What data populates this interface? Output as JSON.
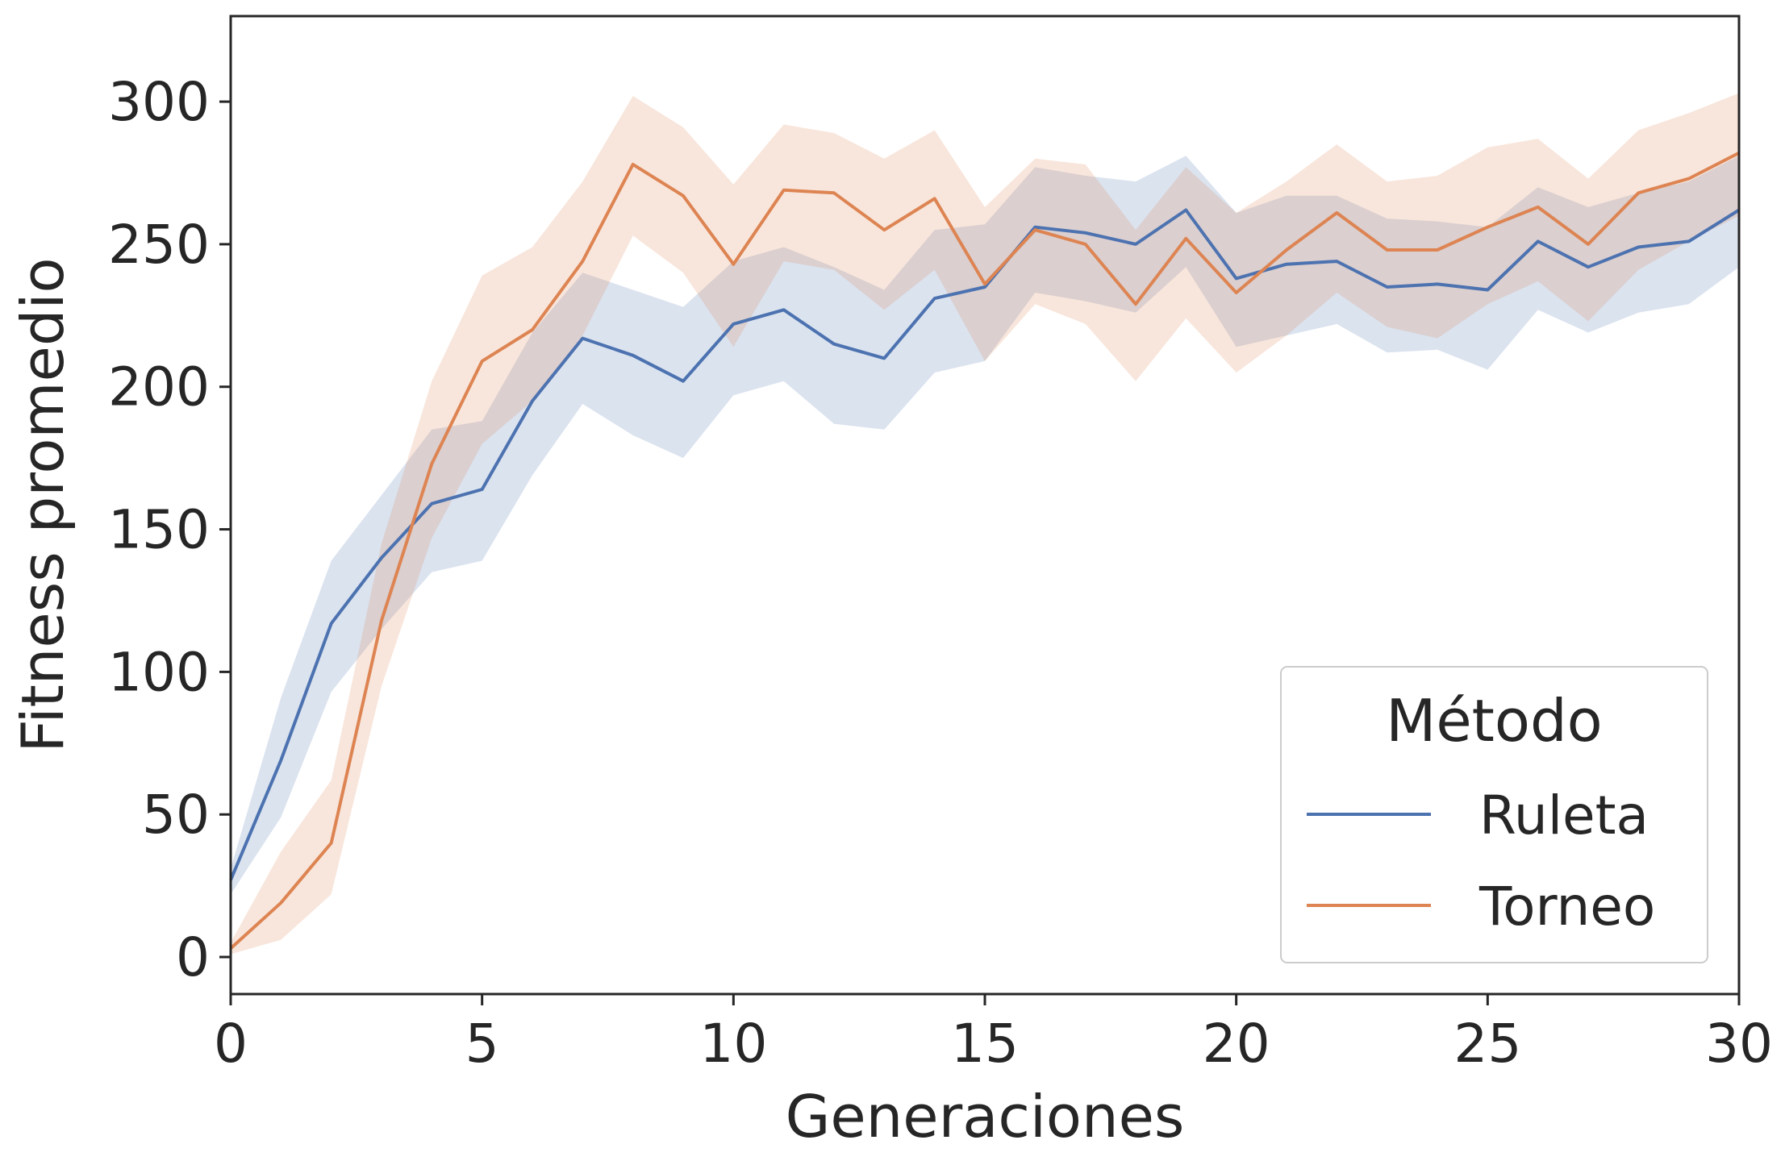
{
  "chart_data": {
    "type": "line",
    "title": "",
    "xlabel": "Generaciones",
    "ylabel": "Fitness promedio",
    "xlim": [
      0,
      30
    ],
    "ylim": [
      -13,
      330
    ],
    "xticks": [
      0,
      5,
      10,
      15,
      20,
      25,
      30
    ],
    "yticks": [
      0,
      50,
      100,
      150,
      200,
      250,
      300
    ],
    "grid": false,
    "legend": {
      "title": "Método",
      "placement": "bottom-right"
    },
    "x": [
      0,
      1,
      2,
      3,
      4,
      5,
      6,
      7,
      8,
      9,
      10,
      11,
      12,
      13,
      14,
      15,
      16,
      17,
      18,
      19,
      20,
      21,
      22,
      23,
      24,
      25,
      26,
      27,
      28,
      29,
      30
    ],
    "series": [
      {
        "name": "Ruleta",
        "color": "#4c72b0",
        "values": [
          27,
          69,
          117,
          140,
          159,
          164,
          195,
          217,
          211,
          202,
          222,
          227,
          215,
          210,
          231,
          235,
          256,
          254,
          250,
          262,
          238,
          243,
          244,
          235,
          236,
          234,
          251,
          242,
          249,
          251,
          262
        ],
        "lower": [
          22,
          49,
          93,
          115,
          135,
          139,
          169,
          194,
          183,
          175,
          197,
          202,
          187,
          185,
          205,
          209,
          233,
          230,
          226,
          242,
          214,
          218,
          222,
          212,
          213,
          206,
          227,
          219,
          226,
          229,
          242
        ],
        "upper": [
          31,
          91,
          139,
          162,
          185,
          188,
          219,
          240,
          234,
          228,
          244,
          249,
          242,
          234,
          255,
          257,
          277,
          274,
          272,
          281,
          261,
          267,
          267,
          259,
          258,
          256,
          270,
          263,
          268,
          272,
          281
        ]
      },
      {
        "name": "Torneo",
        "color": "#dd8452",
        "values": [
          3,
          19,
          40,
          118,
          173,
          209,
          220,
          244,
          278,
          267,
          243,
          269,
          268,
          255,
          266,
          236,
          255,
          250,
          229,
          252,
          233,
          248,
          261,
          248,
          248,
          256,
          263,
          250,
          268,
          273,
          282
        ],
        "lower": [
          1,
          6,
          22,
          95,
          147,
          180,
          195,
          218,
          253,
          240,
          214,
          244,
          241,
          227,
          241,
          209,
          229,
          222,
          202,
          224,
          205,
          218,
          233,
          221,
          217,
          229,
          237,
          223,
          241,
          251,
          260
        ],
        "upper": [
          5,
          37,
          62,
          145,
          202,
          239,
          249,
          272,
          302,
          291,
          271,
          292,
          289,
          280,
          290,
          263,
          280,
          278,
          255,
          277,
          261,
          272,
          285,
          272,
          274,
          284,
          287,
          273,
          290,
          296,
          303
        ]
      }
    ]
  }
}
